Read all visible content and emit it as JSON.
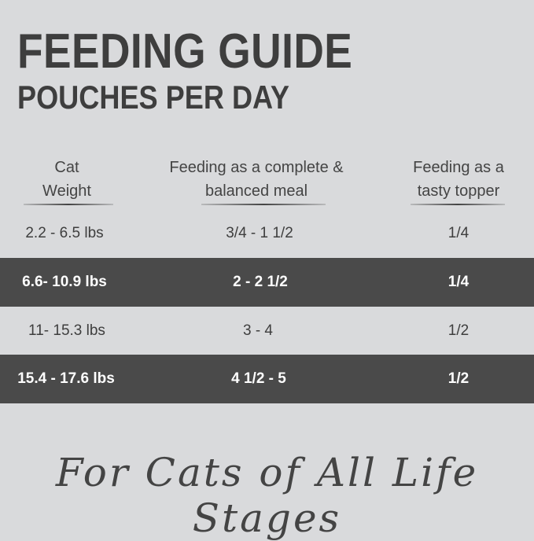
{
  "title": "FEEDING GUIDE",
  "subtitle": "POUCHES PER DAY",
  "table": {
    "headers": [
      [
        "Cat",
        "Weight"
      ],
      [
        "Feeding as a complete &",
        "balanced meal"
      ],
      [
        "Feeding as a",
        "tasty topper"
      ]
    ],
    "rows": [
      {
        "weight": "2.2 - 6.5 lbs",
        "complete": "3/4 - 1 1/2",
        "topper": "1/4",
        "highlighted": false
      },
      {
        "weight": "6.6- 10.9 lbs",
        "complete": "2 - 2 1/2",
        "topper": "1/4",
        "highlighted": true
      },
      {
        "weight": "11- 15.3 lbs",
        "complete": "3 - 4",
        "topper": "1/2",
        "highlighted": false
      },
      {
        "weight": "15.4 - 17.6 lbs",
        "complete": "4 1/2 - 5",
        "topper": "1/2",
        "highlighted": true
      }
    ]
  },
  "tagline": "For Cats of All Life Stages",
  "colors": {
    "background": "#d9dadc",
    "highlight_row": "#4a4a4a",
    "text": "#3e3e3e"
  }
}
